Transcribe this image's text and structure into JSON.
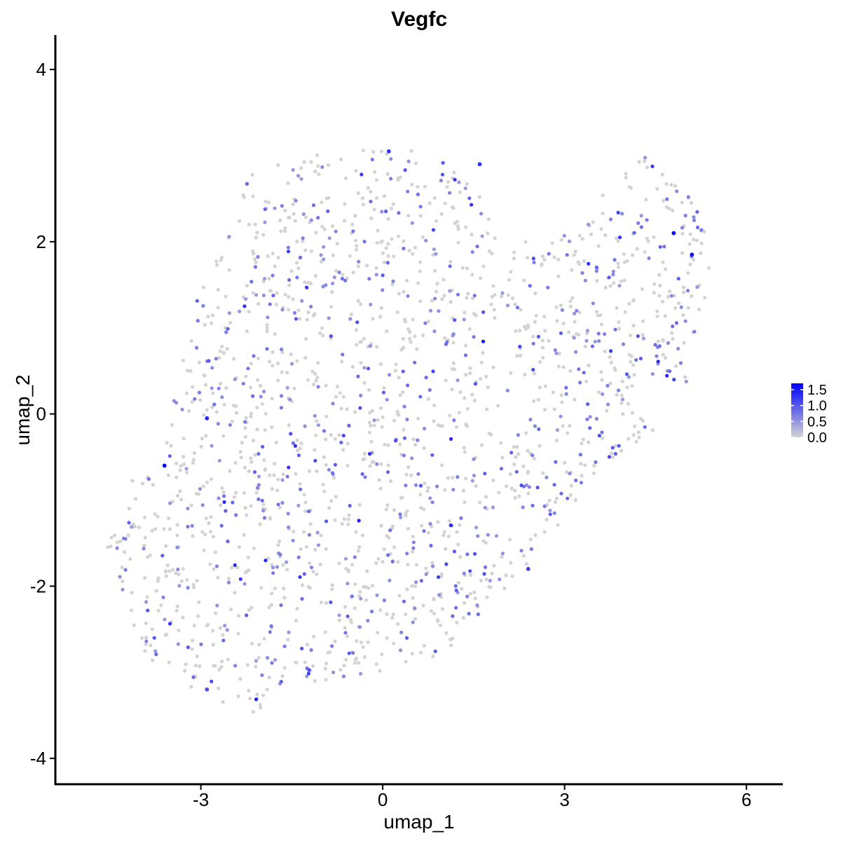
{
  "chart_data": {
    "type": "scatter",
    "title": "Vegfc",
    "xlabel": "umap_1",
    "ylabel": "umap_2",
    "xlim": [
      -5.4,
      6.6
    ],
    "ylim": [
      -4.3,
      4.4
    ],
    "xticks": [
      -3,
      0,
      3,
      6
    ],
    "xtick_labels": [
      "-3",
      "0",
      "3",
      "6"
    ],
    "yticks": [
      -4,
      -2,
      0,
      2,
      4
    ],
    "ytick_labels": [
      "-4",
      "-2",
      "0",
      "2",
      "4"
    ],
    "grid": false,
    "legend_position": "right",
    "color_low": "#d3d3d3",
    "color_high": "#0000ff",
    "color_scale": {
      "min": 0,
      "max": 1.7,
      "ticks": [
        0,
        0.5,
        1,
        1.5
      ],
      "tick_labels": [
        "0.0",
        "0.5",
        "1.0",
        "1.5"
      ]
    },
    "highlighted_points": [
      {
        "x": -3.6,
        "y": -0.6,
        "value": 1.7
      },
      {
        "x": -2.9,
        "y": -0.05,
        "value": 1.4
      },
      {
        "x": 1.6,
        "y": 2.9,
        "value": 1.3
      },
      {
        "x": 4.8,
        "y": 2.1,
        "value": 1.7
      },
      {
        "x": 5.1,
        "y": 1.85,
        "value": 1.6
      },
      {
        "x": 0.1,
        "y": 3.05,
        "value": 1.3
      },
      {
        "x": 2.4,
        "y": -1.8,
        "value": 1.2
      },
      {
        "x": -2.9,
        "y": -3.2,
        "value": 1.1
      }
    ],
    "n_background_points": 1800
  }
}
